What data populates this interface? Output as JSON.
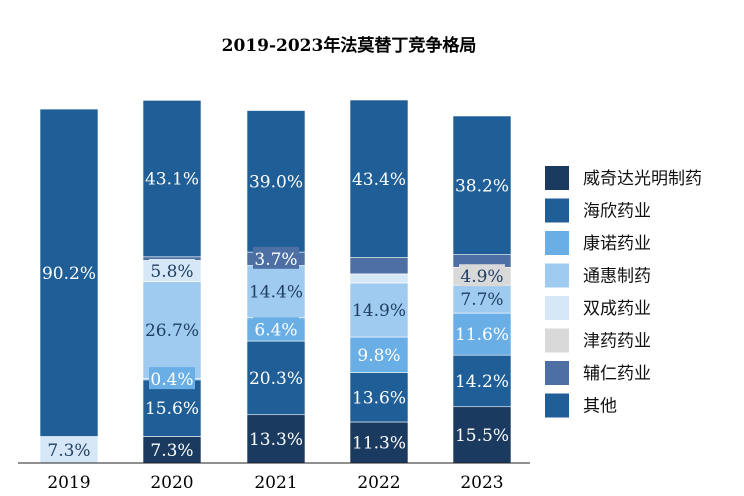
{
  "chart_data": {
    "type": "bar",
    "stacked": true,
    "title": "2019-2023年法莫替丁竞争格局",
    "categories": [
      "2019",
      "2020",
      "2021",
      "2022",
      "2023"
    ],
    "ylim": [
      0,
      100
    ],
    "legend_position": "right",
    "colors": {
      "威奇达光明制药": "#1b3a5f",
      "海欣药业": "#1f5e96",
      "康诺药业": "#6aaee6",
      "通惠制药": "#9fcbf0",
      "双成药业": "#d6e8f8",
      "津药药业": "#d9d9d9",
      "辅仁药业": "#4d6fa3",
      "其他": "#1f5e96"
    },
    "series": [
      {
        "name": "威奇达光明制药",
        "values": [
          0,
          7.3,
          13.3,
          11.3,
          15.5
        ],
        "labels": [
          "",
          "7.3%",
          "13.3%",
          "11.3%",
          "15.5%"
        ]
      },
      {
        "name": "海欣药业",
        "values": [
          0,
          15.6,
          20.3,
          13.6,
          14.2
        ],
        "labels": [
          "",
          "15.6%",
          "20.3%",
          "13.6%",
          "14.2%"
        ]
      },
      {
        "name": "康诺药业",
        "values": [
          0,
          0.4,
          6.4,
          9.8,
          11.6
        ],
        "labels": [
          "",
          "0.4%",
          "6.4%",
          "9.8%",
          "11.6%"
        ]
      },
      {
        "name": "通惠制药",
        "values": [
          0,
          26.7,
          14.4,
          14.9,
          7.7
        ],
        "labels": [
          "",
          "26.7%",
          "14.4%",
          "14.9%",
          "7.7%"
        ]
      },
      {
        "name": "双成药业",
        "values": [
          7.3,
          5.8,
          0,
          2.5,
          0
        ],
        "labels": [
          "7.3%",
          "5.8%",
          "",
          "",
          ""
        ]
      },
      {
        "name": "津药药业",
        "values": [
          0,
          0,
          0,
          0,
          4.9
        ],
        "labels": [
          "",
          "",
          "",
          "",
          "4.9%"
        ]
      },
      {
        "name": "辅仁药业",
        "values": [
          0,
          1.0,
          3.7,
          4.5,
          3.5
        ],
        "labels": [
          "",
          "",
          "3.7%",
          "",
          ""
        ]
      },
      {
        "name": "其他",
        "values": [
          90.2,
          43.1,
          39.0,
          43.4,
          38.2
        ],
        "labels": [
          "90.2%",
          "43.1%",
          "39.0%",
          "43.4%",
          "38.2%"
        ]
      }
    ]
  }
}
